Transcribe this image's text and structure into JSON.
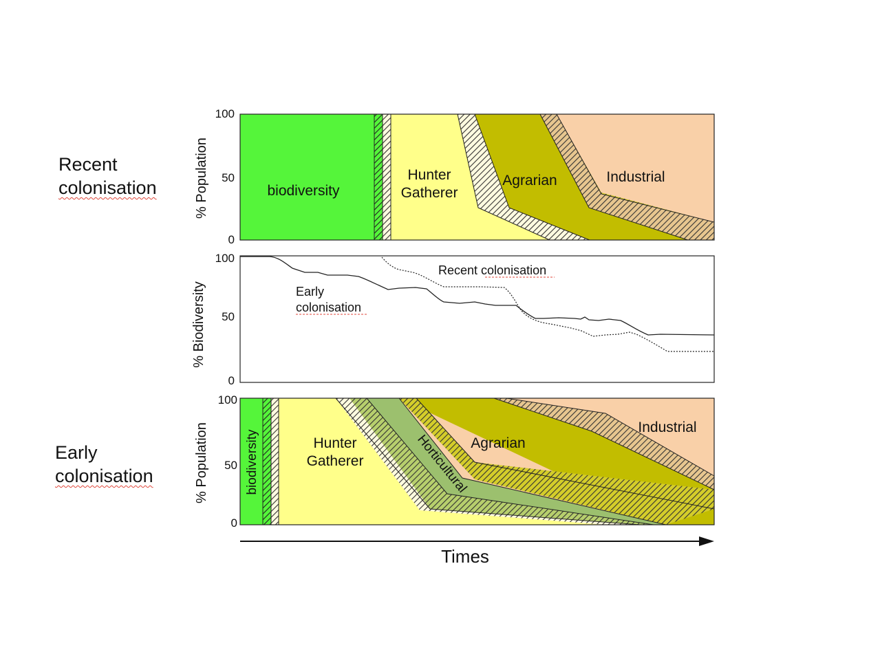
{
  "side_labels": {
    "recent": {
      "line1": "Recent",
      "line2": "colonisation"
    },
    "early": {
      "line1": "Early",
      "line2": "colonisation"
    }
  },
  "top_panel": {
    "ylabel": "% Population",
    "ticks": [
      "100",
      "50",
      "0"
    ],
    "regions": {
      "biodiversity": "biodiversity",
      "hunter_line1": "Hunter",
      "hunter_line2": "Gatherer",
      "agrarian": "Agrarian",
      "industrial": "Industrial"
    }
  },
  "middle_panel": {
    "ylabel": "% Biodiversity",
    "ticks": [
      "100",
      "50",
      "0"
    ],
    "recent_label": "Recent colonisation",
    "early_label_line1": "Early",
    "early_label_line2": "colonisation"
  },
  "bottom_panel": {
    "ylabel": "% Population",
    "ticks": [
      "100",
      "50",
      "0"
    ],
    "regions": {
      "biodiversity": "biodiversity",
      "hunter_line1": "Hunter",
      "hunter_line2": "Gatherer",
      "horticultural": "Horticultural",
      "agrarian": "Agrarian",
      "industrial": "Industrial"
    }
  },
  "x_axis": {
    "label": "Times"
  },
  "colors": {
    "biodiversity": "#55f53a",
    "hunter_gatherer": "#ffff8a",
    "agrarian": "#c2bd00",
    "horticultural": "#9cc06e",
    "industrial": "#f9d0a8"
  }
}
